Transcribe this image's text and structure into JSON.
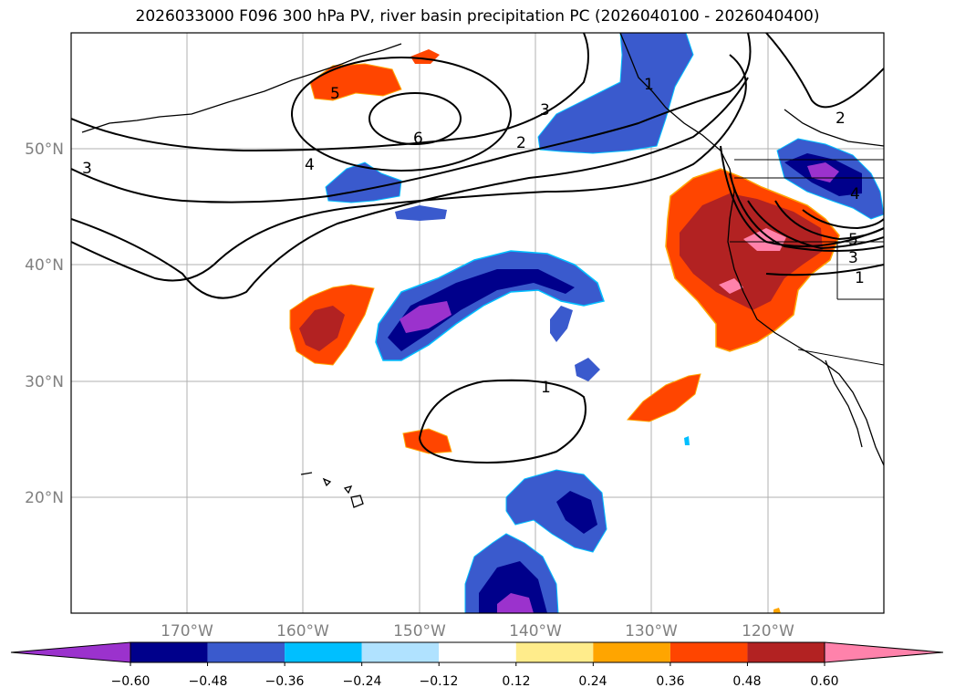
{
  "title": "2026033000 F096 300 hPa PV, river basin precipitation PC (2026040100 - 2026040400)",
  "map": {
    "lat_labels": [
      "50°N",
      "40°N",
      "30°N",
      "20°N"
    ],
    "lon_labels": [
      "170°W",
      "160°W",
      "150°W",
      "140°W",
      "130°W",
      "120°W"
    ],
    "contour_labels": [
      "6",
      "5",
      "4",
      "3",
      "3",
      "2",
      "2",
      "1",
      "1",
      "4",
      "5",
      "3",
      "1"
    ]
  },
  "colorbar": {
    "ticks": [
      "−0.60",
      "−0.48",
      "−0.36",
      "−0.24",
      "−0.12",
      "0.12",
      "0.24",
      "0.36",
      "0.48",
      "0.60"
    ],
    "colors": [
      "#9b32cd",
      "#00008b",
      "#3a5acd",
      "#00bfff",
      "#b0e2ff",
      "#ffffff",
      "#ffec8b",
      "#ffa500",
      "#ff4500",
      "#b22222",
      "#ff82ab"
    ]
  }
}
